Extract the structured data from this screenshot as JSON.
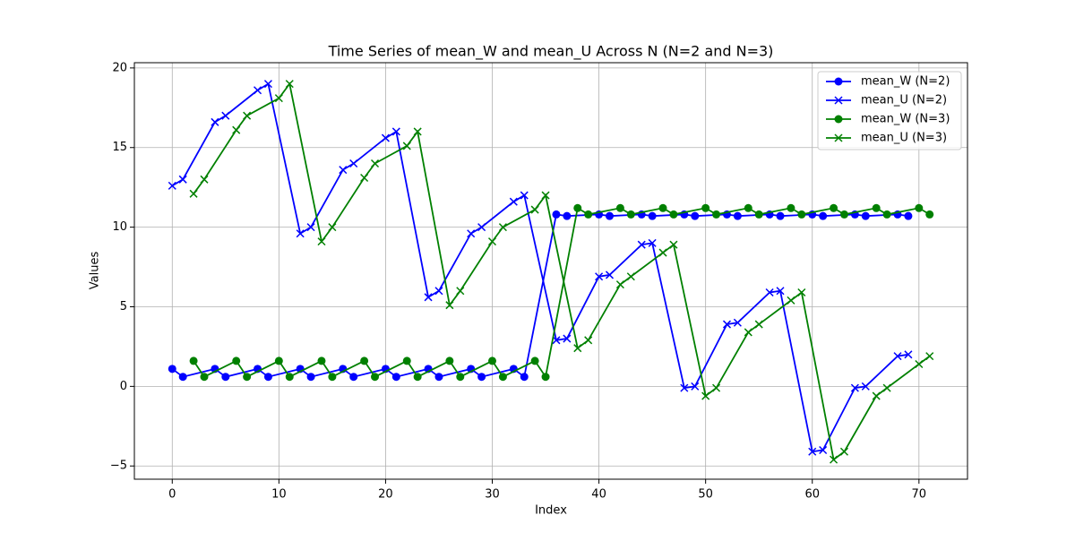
{
  "chart_data": {
    "type": "line",
    "title": "Time Series of mean_W and mean_U Across N (N=2 and N=3)",
    "x_label": "Index",
    "y_label": "Values",
    "series": [
      {
        "name": "mean_W (N=2)",
        "color": "blue",
        "marker": "o",
        "x": [
          0,
          1,
          4,
          5,
          8,
          9,
          12,
          13,
          16,
          17,
          20,
          21,
          24,
          25,
          28,
          29,
          32,
          33,
          36,
          37,
          40,
          41,
          44,
          45,
          48,
          49,
          52,
          53,
          56,
          57,
          60,
          61,
          64,
          65,
          68,
          69
        ],
        "values": [
          1.1,
          0.6,
          1.1,
          0.6,
          1.1,
          0.6,
          1.1,
          0.6,
          1.1,
          0.6,
          1.1,
          0.6,
          1.1,
          0.6,
          1.1,
          0.6,
          1.1,
          0.6,
          10.8,
          10.7,
          10.8,
          10.7,
          10.8,
          10.7,
          10.8,
          10.7,
          10.8,
          10.7,
          10.8,
          10.7,
          10.8,
          10.7,
          10.8,
          10.7,
          10.8,
          10.7
        ]
      },
      {
        "name": "mean_U (N=2)",
        "color": "blue",
        "marker": "x",
        "x": [
          0,
          1,
          4,
          5,
          8,
          9,
          12,
          13,
          16,
          17,
          20,
          21,
          24,
          25,
          28,
          29,
          32,
          33,
          36,
          37,
          40,
          41,
          44,
          45,
          48,
          49,
          52,
          53,
          56,
          57,
          60,
          61,
          64,
          65,
          68,
          69
        ],
        "values": [
          12.6,
          13.0,
          16.6,
          17.0,
          18.6,
          19.0,
          9.6,
          10.0,
          13.6,
          14.0,
          15.6,
          16.0,
          5.6,
          6.0,
          9.6,
          10.0,
          11.6,
          12.0,
          2.9,
          3.0,
          6.9,
          7.0,
          8.9,
          9.0,
          -0.1,
          0.0,
          3.9,
          4.0,
          5.9,
          6.0,
          -4.1,
          -4.0,
          -0.1,
          0.0,
          1.9,
          2.0
        ]
      },
      {
        "name": "mean_W (N=3)",
        "color": "green",
        "marker": "o",
        "x": [
          2,
          3,
          6,
          7,
          10,
          11,
          14,
          15,
          18,
          19,
          22,
          23,
          26,
          27,
          30,
          31,
          34,
          35,
          38,
          39,
          42,
          43,
          46,
          47,
          50,
          51,
          54,
          55,
          58,
          59,
          62,
          63,
          66,
          67,
          70,
          71
        ],
        "values": [
          1.6,
          0.6,
          1.6,
          0.6,
          1.6,
          0.6,
          1.6,
          0.6,
          1.6,
          0.6,
          1.6,
          0.6,
          1.6,
          0.6,
          1.6,
          0.6,
          1.6,
          0.6,
          11.2,
          10.8,
          11.2,
          10.8,
          11.2,
          10.8,
          11.2,
          10.8,
          11.2,
          10.8,
          11.2,
          10.8,
          11.2,
          10.8,
          11.2,
          10.8,
          11.2,
          10.8
        ]
      },
      {
        "name": "mean_U (N=3)",
        "color": "green",
        "marker": "x",
        "x": [
          2,
          3,
          6,
          7,
          10,
          11,
          14,
          15,
          18,
          19,
          22,
          23,
          26,
          27,
          30,
          31,
          34,
          35,
          38,
          39,
          42,
          43,
          46,
          47,
          50,
          51,
          54,
          55,
          58,
          59,
          62,
          63,
          66,
          67,
          70,
          71
        ],
        "values": [
          12.1,
          13.0,
          16.1,
          17.0,
          18.1,
          19.0,
          9.1,
          10.0,
          13.1,
          14.0,
          15.1,
          16.0,
          5.1,
          6.0,
          9.1,
          10.0,
          11.1,
          12.0,
          2.4,
          2.9,
          6.4,
          6.9,
          8.4,
          8.9,
          -0.6,
          -0.1,
          3.4,
          3.9,
          5.4,
          5.9,
          -4.6,
          -4.1,
          -0.6,
          -0.1,
          1.4,
          1.9
        ]
      }
    ],
    "xlim": [
      -3.55,
      74.55
    ],
    "xticks": [
      0,
      10,
      20,
      30,
      40,
      50,
      60,
      70
    ],
    "ylim": [
      -5.83,
      20.33
    ],
    "yticks": [
      {
        "value": -5,
        "label": "−5"
      },
      0,
      5,
      10,
      15,
      20
    ],
    "grid": true,
    "legend": "upper right"
  }
}
